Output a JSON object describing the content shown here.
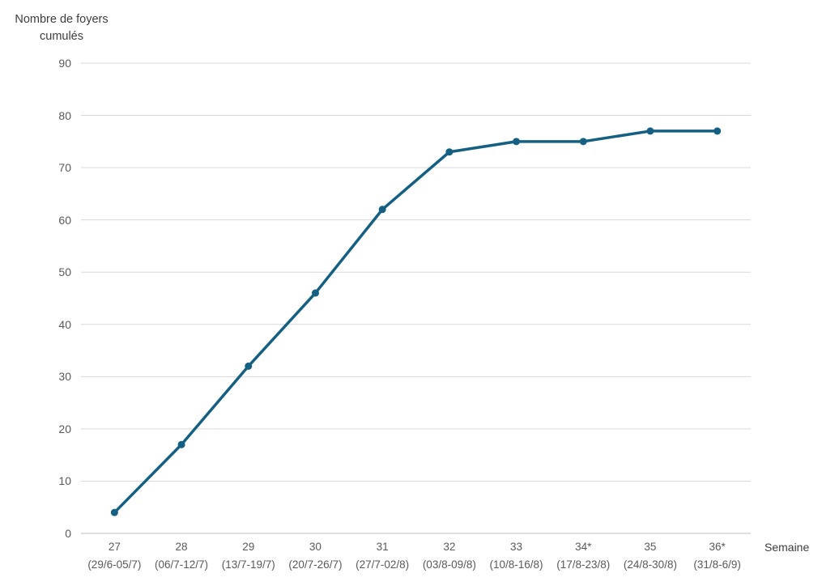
{
  "page": {
    "background": "#ffffff"
  },
  "chart_data": {
    "type": "line",
    "title": "Nombre de foyers cumulés",
    "y_axis_title_lines": [
      "Nombre de foyers",
      "cumulés"
    ],
    "xlabel": "Semaine",
    "ylabel": "Nombre de foyers cumulés",
    "categories": [
      {
        "week": "27",
        "dates": "(29/6-05/7)"
      },
      {
        "week": "28",
        "dates": "(06/7-12/7)"
      },
      {
        "week": "29",
        "dates": "(13/7-19/7)"
      },
      {
        "week": "30",
        "dates": "(20/7-26/7)"
      },
      {
        "week": "31",
        "dates": "(27/7-02/8)"
      },
      {
        "week": "32",
        "dates": "(03/8-09/8)"
      },
      {
        "week": "33",
        "dates": "(10/8-16/8)"
      },
      {
        "week": "34*",
        "dates": "(17/8-23/8)"
      },
      {
        "week": "35",
        "dates": "(24/8-30/8)"
      },
      {
        "week": "36*",
        "dates": "(31/8-6/9)"
      }
    ],
    "values": [
      4,
      17,
      32,
      46,
      62,
      73,
      75,
      75,
      77,
      77
    ],
    "ylim": [
      0,
      90
    ],
    "yticks": [
      0,
      10,
      20,
      30,
      40,
      50,
      60,
      70,
      80,
      90
    ],
    "grid": true,
    "legend": "none",
    "colors": {
      "series": "#156082",
      "gridline": "#d9d9d9",
      "axis_line": "#bfbfbf",
      "tick_label": "#595959",
      "axis_title": "#3d3d3d"
    }
  }
}
